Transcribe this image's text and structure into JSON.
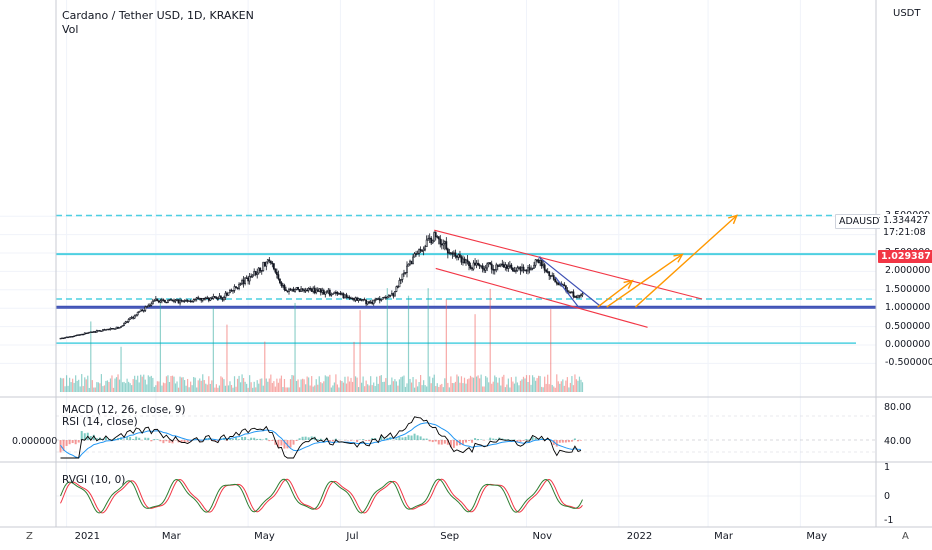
{
  "header": {
    "title": "Cardano / Tether USD, 1D, KRAKEN",
    "volume_label": "Vol",
    "currency": "USDT"
  },
  "price_axis": {
    "ticks": [
      "3.500000",
      "3.000000",
      "2.500000",
      "2.000000",
      "1.500000",
      "1.000000",
      "0.500000",
      "0.000000",
      "-0.500000"
    ]
  },
  "symbol_tag": {
    "symbol": "ADAUSDT",
    "price": "1.334427",
    "countdown": "17:21:08"
  },
  "level_tag": "1.029387",
  "macd": {
    "label": "MACD (12, 26, close, 9)",
    "axis": [
      "80.00",
      "40.00"
    ],
    "left_value": "0.000000"
  },
  "rsi": {
    "label": "RSI (14, close)"
  },
  "rvgi": {
    "label": "RVGI (10, 0)",
    "axis": [
      "1",
      "0",
      "-1"
    ]
  },
  "time_axis": {
    "ticks": [
      "2021",
      "Mar",
      "May",
      "Jul",
      "Sep",
      "Nov",
      "2022",
      "Mar",
      "May"
    ]
  },
  "corner": {
    "left": "Z",
    "right": "A"
  },
  "colors": {
    "up": "#26a69a",
    "down": "#ef5350",
    "candle": "#131722",
    "cyan": "#4dd0e1",
    "channel": "#f23645",
    "wedge": "#3f51b5",
    "arrow": "#ff9800",
    "macd": "#000000",
    "signal": "#2196f3",
    "rvgi": "#2e7d32",
    "rvgi_signal": "#f23645"
  },
  "chart_data": {
    "type": "candlestick",
    "title": "Cardano / Tether USD, 1D, KRAKEN",
    "ylim": [
      -0.5,
      3.6
    ],
    "x_range": [
      "2020-12-25",
      "2022-06-20"
    ],
    "close_series": [
      {
        "date": "2020-12-28",
        "value": 0.18
      },
      {
        "date": "2021-01-15",
        "value": 0.33
      },
      {
        "date": "2021-02-05",
        "value": 0.48
      },
      {
        "date": "2021-02-20",
        "value": 0.95
      },
      {
        "date": "2021-03-01",
        "value": 1.2
      },
      {
        "date": "2021-03-20",
        "value": 1.2
      },
      {
        "date": "2021-04-15",
        "value": 1.3
      },
      {
        "date": "2021-05-05",
        "value": 1.95
      },
      {
        "date": "2021-05-15",
        "value": 2.3
      },
      {
        "date": "2021-05-25",
        "value": 1.5
      },
      {
        "date": "2021-06-15",
        "value": 1.5
      },
      {
        "date": "2021-07-01",
        "value": 1.35
      },
      {
        "date": "2021-07-20",
        "value": 1.15
      },
      {
        "date": "2021-08-05",
        "value": 1.4
      },
      {
        "date": "2021-08-20",
        "value": 2.5
      },
      {
        "date": "2021-09-02",
        "value": 3.0
      },
      {
        "date": "2021-09-10",
        "value": 2.6
      },
      {
        "date": "2021-09-25",
        "value": 2.15
      },
      {
        "date": "2021-10-15",
        "value": 2.15
      },
      {
        "date": "2021-11-01",
        "value": 2.0
      },
      {
        "date": "2021-11-08",
        "value": 2.3
      },
      {
        "date": "2021-11-20",
        "value": 1.75
      },
      {
        "date": "2021-12-04",
        "value": 1.3
      },
      {
        "date": "2021-12-08",
        "value": 1.33
      }
    ],
    "levels": [
      {
        "value": 3.52,
        "style": "dashed"
      },
      {
        "value": 2.47,
        "style": "solid"
      },
      {
        "value": 1.25,
        "style": "dashed"
      },
      {
        "value": 1.05,
        "style": "solid"
      },
      {
        "value": 1.03,
        "style": "solid"
      },
      {
        "value": 1.0,
        "style": "solid"
      },
      {
        "value": 0.05,
        "style": "solid"
      }
    ]
  }
}
